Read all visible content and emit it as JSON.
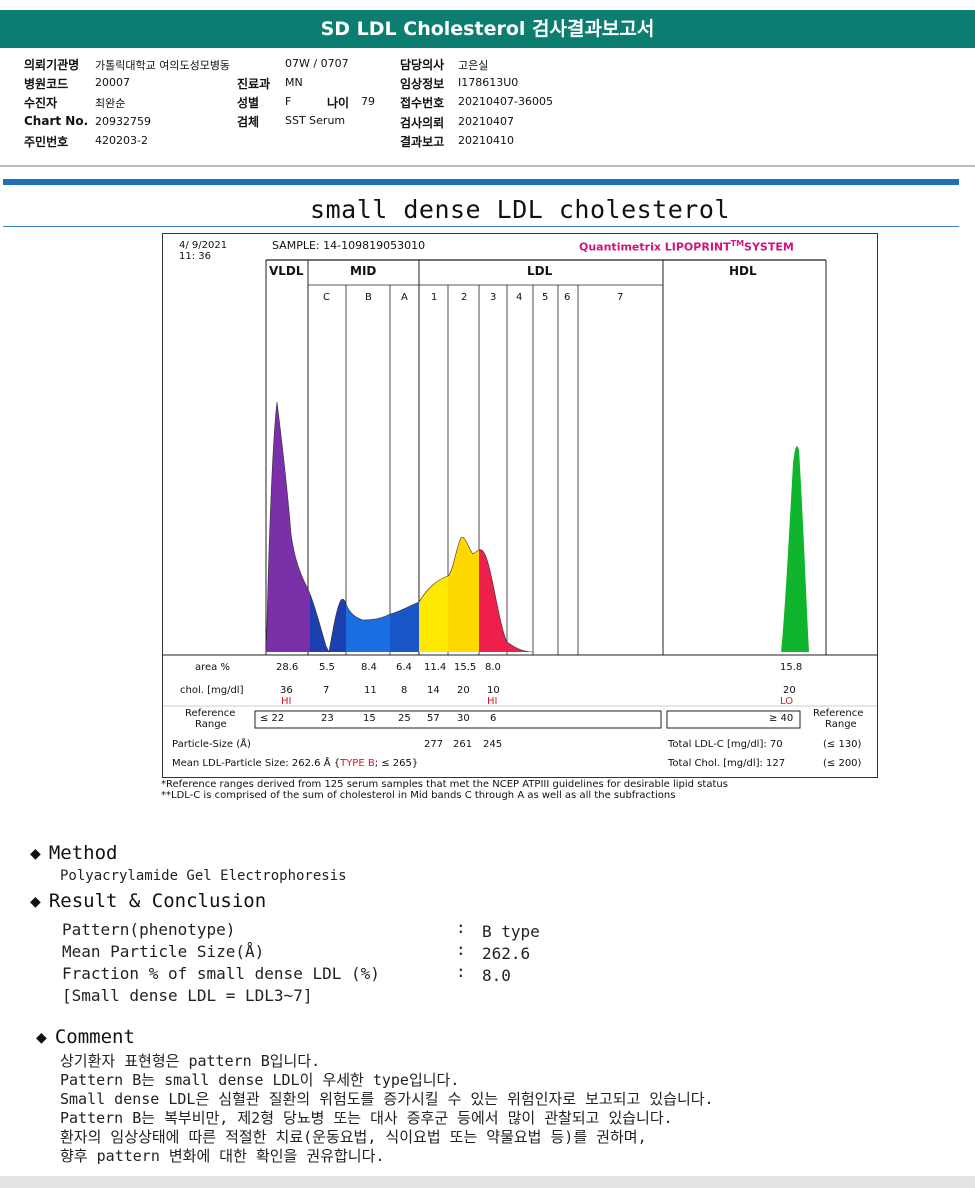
{
  "header_title": "SD LDL Cholesterol 검사결과보고서",
  "info": {
    "org_label": "의뢰기관명",
    "org_value": "가톨릭대학교 여의도성모병동",
    "ward_value": "07W / 0707",
    "doctor_label": "담당의사",
    "doctor_value": "고은실",
    "hospital_code_label": "병원코드",
    "hospital_code_value": "20007",
    "dept_label": "진료과",
    "dept_value": "MN",
    "clinical_label": "임상정보",
    "clinical_value": "I178613U0",
    "patient_label": "수진자",
    "patient_value": "최완순",
    "sex_label": "성별",
    "sex_value": "F",
    "age_label": "나이",
    "age_value": "79",
    "receipt_label": "접수번호",
    "receipt_value": "20210407-36005",
    "chart_label": "Chart No.",
    "chart_value": "20932759",
    "specimen_label": "검체",
    "specimen_value": "SST Serum",
    "request_label": "검사의뢰",
    "request_value": "20210407",
    "id_label": "주민번호",
    "id_value": "420203-2",
    "result_label": "결과보고",
    "result_value": "20210410"
  },
  "report_title": "small dense LDL cholesterol",
  "report": {
    "date": "4/  9/2021",
    "time": "11: 36",
    "sample": "SAMPLE:   14-109819053010",
    "brand": "Quantimetrix LIPOPRINT",
    "brand_tm": "TM",
    "brand_system": "SYSTEM",
    "groups": [
      "VLDL",
      "MID",
      "LDL",
      "HDL"
    ],
    "bands": [
      "C",
      "B",
      "A",
      "1",
      "2",
      "3",
      "4",
      "5",
      "6",
      "7"
    ],
    "area_label": "area %",
    "area_values": [
      "28.6",
      "5.5",
      "8.4",
      "6.4",
      "11.4",
      "15.5",
      "8.0"
    ],
    "area_hdl": "15.8",
    "chol_label": "chol. [mg/dl]",
    "chol_values": [
      "36",
      "7",
      "11",
      "8",
      "14",
      "20",
      "10"
    ],
    "chol_hdl": "20",
    "flag_hi": "HI",
    "flag_hi2": "HI",
    "flag_lo": "LO",
    "ref_label_1": "Reference",
    "ref_label_2": "Range",
    "ref_values": [
      "≤ 22",
      "23",
      "15",
      "25",
      "57",
      "30",
      "6"
    ],
    "ref_hdl": "≥ 40",
    "ref_right_1": "Reference",
    "ref_right_2": "Range",
    "particle_label": "Particle-Size (Å)",
    "particle_values": [
      "277",
      "261",
      "245"
    ],
    "mean_label": "Mean LDL-Particle Size:   262.6 Å  {",
    "mean_type": "TYPE B",
    "mean_suffix": "; ≤ 265}",
    "total_ldl_label": "Total LDL-C [mg/dl]:  70",
    "total_ldl_ref": "(≤ 130)",
    "total_chol_label": "Total Chol. [mg/dl]:   127",
    "total_chol_ref": "(≤ 200)"
  },
  "notes": [
    "*Reference ranges derived from 125 serum samples that met the NCEP ATPIII guidelines for desirable lipid status",
    "**LDL-C is comprised of the sum of cholesterol in Mid bands C through A as well as all the subfractions"
  ],
  "method": {
    "heading": "Method",
    "text": "Polyacrylamide Gel Electrophoresis"
  },
  "result": {
    "heading": "Result & Conclusion",
    "rows": [
      {
        "label": "Pattern(phenotype)",
        "value": "B type"
      },
      {
        "label": "Mean Particle Size(Å)",
        "value": "262.6"
      },
      {
        "label": "Fraction % of small dense LDL (%)",
        "value": "8.0"
      }
    ],
    "colon": ":",
    "footnote": "[Small dense LDL = LDL3~7]"
  },
  "comment": {
    "heading": "Comment",
    "lines": [
      "상기환자 표현형은 pattern B입니다.",
      "Pattern B는 small dense LDL이 우세한 type입니다.",
      "Small dense LDL은 심혈관 질환의 위험도를 증가시킬 수 있는 위험인자로 보고되고 있습니다.",
      "Pattern B는 복부비만, 제2형 당뇨병 또는 대사 증후군 등에서 많이 관찰되고 있습니다.",
      "환자의 임상상태에 따른 적절한 치료(운동요법, 식이요법 또는 약물요법 등)를 권하며,",
      "향후 pattern 변화에 대한 확인을 권유합니다."
    ]
  },
  "colors": {
    "header": "#0c7d71",
    "vldl": "#7b2fa8",
    "mid_c": "#1d3fb0",
    "mid_b": "#1a6ee0",
    "mid_a": "#1957c8",
    "ldl1": "#ffe800",
    "ldl2": "#ffd800",
    "ldl3": "#ef1f4c",
    "hdl": "#10b52e",
    "brand": "#d4127c",
    "flag": "#e0151e"
  }
}
